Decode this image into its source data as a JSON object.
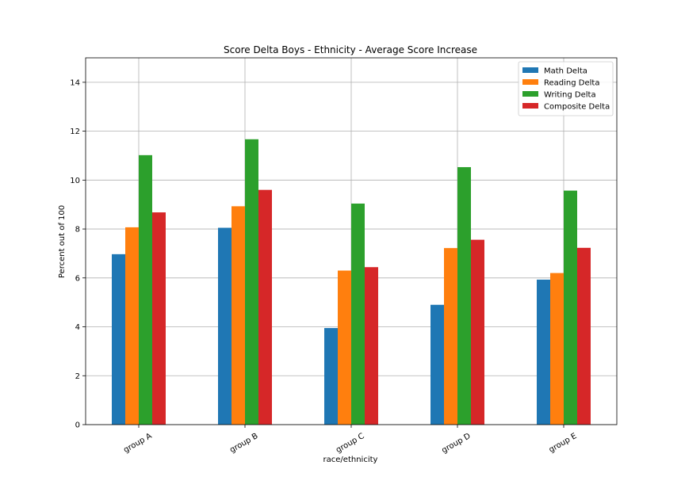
{
  "chart_data": {
    "type": "bar",
    "title": "Score Delta Boys - Ethnicity - Average Score Increase",
    "xlabel": "race/ethnicity",
    "ylabel": "Percent out of 100",
    "categories": [
      "group A",
      "group B",
      "group C",
      "group D",
      "group E"
    ],
    "ylim": [
      0,
      15
    ],
    "yticks": [
      0,
      2,
      4,
      6,
      8,
      10,
      12,
      14
    ],
    "grid": true,
    "legend_position": "top-right",
    "series": [
      {
        "name": "Math Delta",
        "color": "#1f77b4",
        "values": [
          6.97,
          8.05,
          3.95,
          4.9,
          5.93
        ]
      },
      {
        "name": "Reading Delta",
        "color": "#ff7f0e",
        "values": [
          8.07,
          8.93,
          6.3,
          7.22,
          6.2
        ]
      },
      {
        "name": "Writing Delta",
        "color": "#2ca02c",
        "values": [
          11.02,
          11.67,
          9.04,
          10.53,
          9.57
        ]
      },
      {
        "name": "Composite Delta",
        "color": "#d62728",
        "values": [
          8.68,
          9.6,
          6.44,
          7.56,
          7.23
        ]
      }
    ]
  }
}
